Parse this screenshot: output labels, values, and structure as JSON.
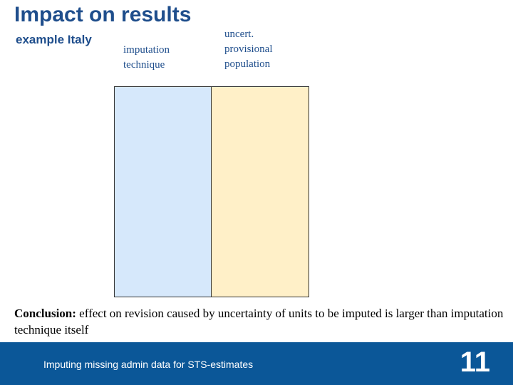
{
  "slide": {
    "title": "Impact on results",
    "subtitle": "example Italy",
    "columns": {
      "left_label_lines": [
        "imputation",
        "technique"
      ],
      "right_label_lines": [
        "uncert.",
        "provisional",
        "population"
      ]
    },
    "conclusion": {
      "lead": "Conclusion:",
      "text": " effect on revision caused by uncertainty of units to be imputed is larger than imputation technique itself"
    },
    "footer": {
      "text": "Imputing missing admin data for STS-estimates",
      "page_number": "11"
    },
    "colors": {
      "title": "#1f4e8c",
      "left_bar": "#d6e8fb",
      "right_bar": "#fff0c8",
      "footer_bg": "#0b5798"
    }
  }
}
